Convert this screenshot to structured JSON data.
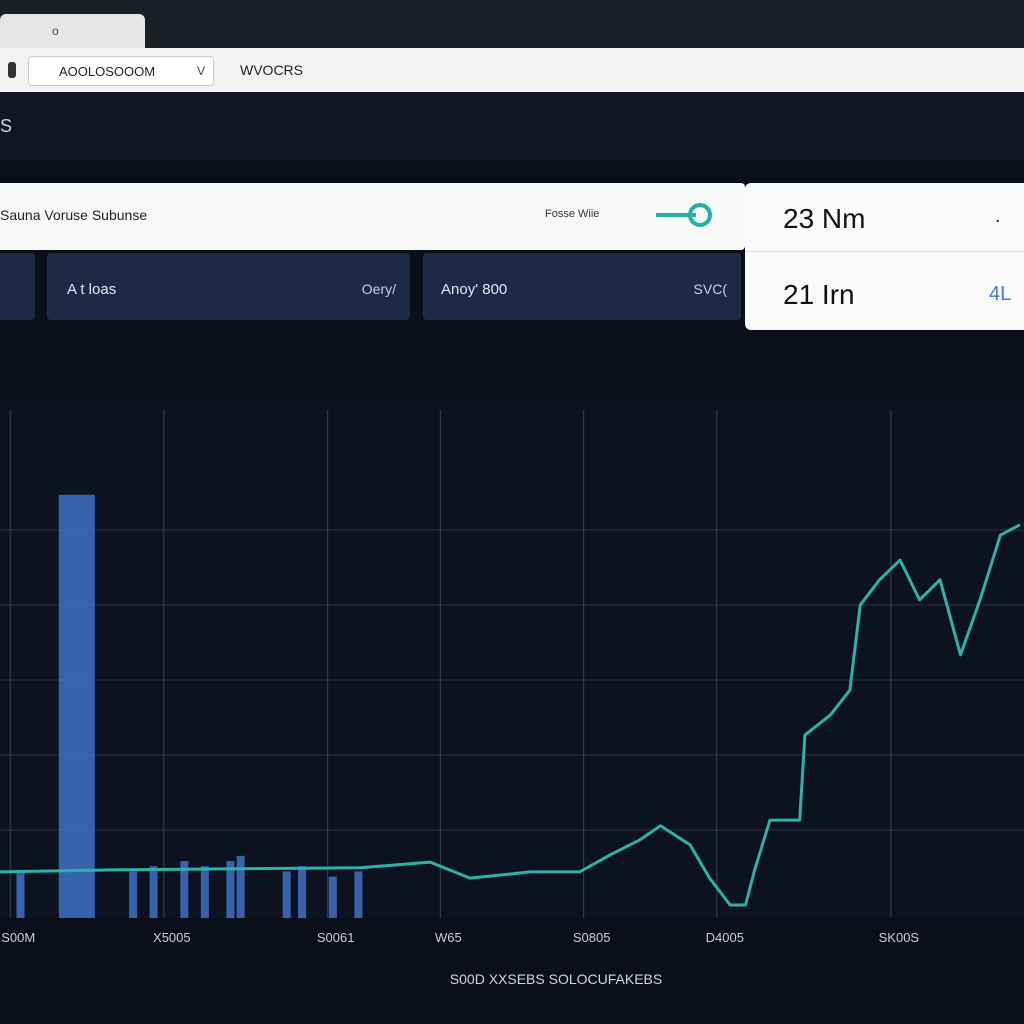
{
  "browser": {
    "tab_icon": "o",
    "address": "AOOLOSOOOM",
    "address_suffix": "V",
    "page_label": "WVOCRS"
  },
  "header": {
    "title": "S"
  },
  "toolbar": {
    "label": "Sauna Voruse Subunse",
    "toggle_label": "Fosse Wiie"
  },
  "cards": [
    {
      "label": "A t loas",
      "value": "Oery/"
    },
    {
      "label": "Anoy' 800",
      "value": "SVC("
    }
  ],
  "stats": [
    {
      "value": "23 Nm",
      "note": "."
    },
    {
      "value": "21 Irn",
      "note": "4L"
    }
  ],
  "chart_data": [
    {
      "type": "bar",
      "color": "#3f72c8",
      "x": [
        2,
        7.5,
        13,
        15,
        18,
        20,
        22.5,
        23.5,
        28,
        29.5,
        32.5,
        35
      ],
      "values": [
        9,
        81.7,
        9,
        10,
        11,
        10,
        11,
        12,
        9,
        10,
        8,
        9
      ],
      "xlim": [
        0,
        100
      ],
      "ylim": [
        0,
        100
      ]
    },
    {
      "type": "line",
      "color": "#2bb3a6",
      "x": [
        0,
        11.7,
        35.2,
        42,
        45.9,
        51.8,
        56.6,
        59.6,
        62.5,
        64.5,
        67.4,
        69.3,
        71.3,
        72.8,
        73.7,
        75.2,
        78.1,
        78.6,
        81.1,
        83,
        84,
        85.9,
        87.9,
        89.8,
        91.8,
        93.8,
        95.7,
        97.7,
        99.6
      ],
      "values": [
        8.9,
        9.3,
        9.7,
        10.8,
        7.7,
        8.9,
        8.9,
        12.2,
        15.1,
        17.8,
        14.1,
        7.7,
        2.5,
        2.5,
        9.3,
        18.9,
        18.9,
        35.3,
        39.2,
        44,
        60.4,
        65.3,
        69.1,
        61.4,
        65.3,
        50.8,
        61.4,
        73.9,
        75.9
      ],
      "xlim": [
        0,
        100
      ],
      "ylim": [
        0,
        100
      ],
      "grid": true,
      "xticks": [
        {
          "value": 1,
          "label": "S00M"
        },
        {
          "value": 16,
          "label": "X5005"
        },
        {
          "value": 32,
          "label": "S0061"
        },
        {
          "value": 43,
          "label": "W65"
        },
        {
          "value": 57,
          "label": "S0805"
        },
        {
          "value": 70,
          "label": "D4005"
        },
        {
          "value": 87,
          "label": "SK00S"
        }
      ],
      "x_label": "S00D XXSEBS SOLOCUFAKEBS"
    }
  ]
}
